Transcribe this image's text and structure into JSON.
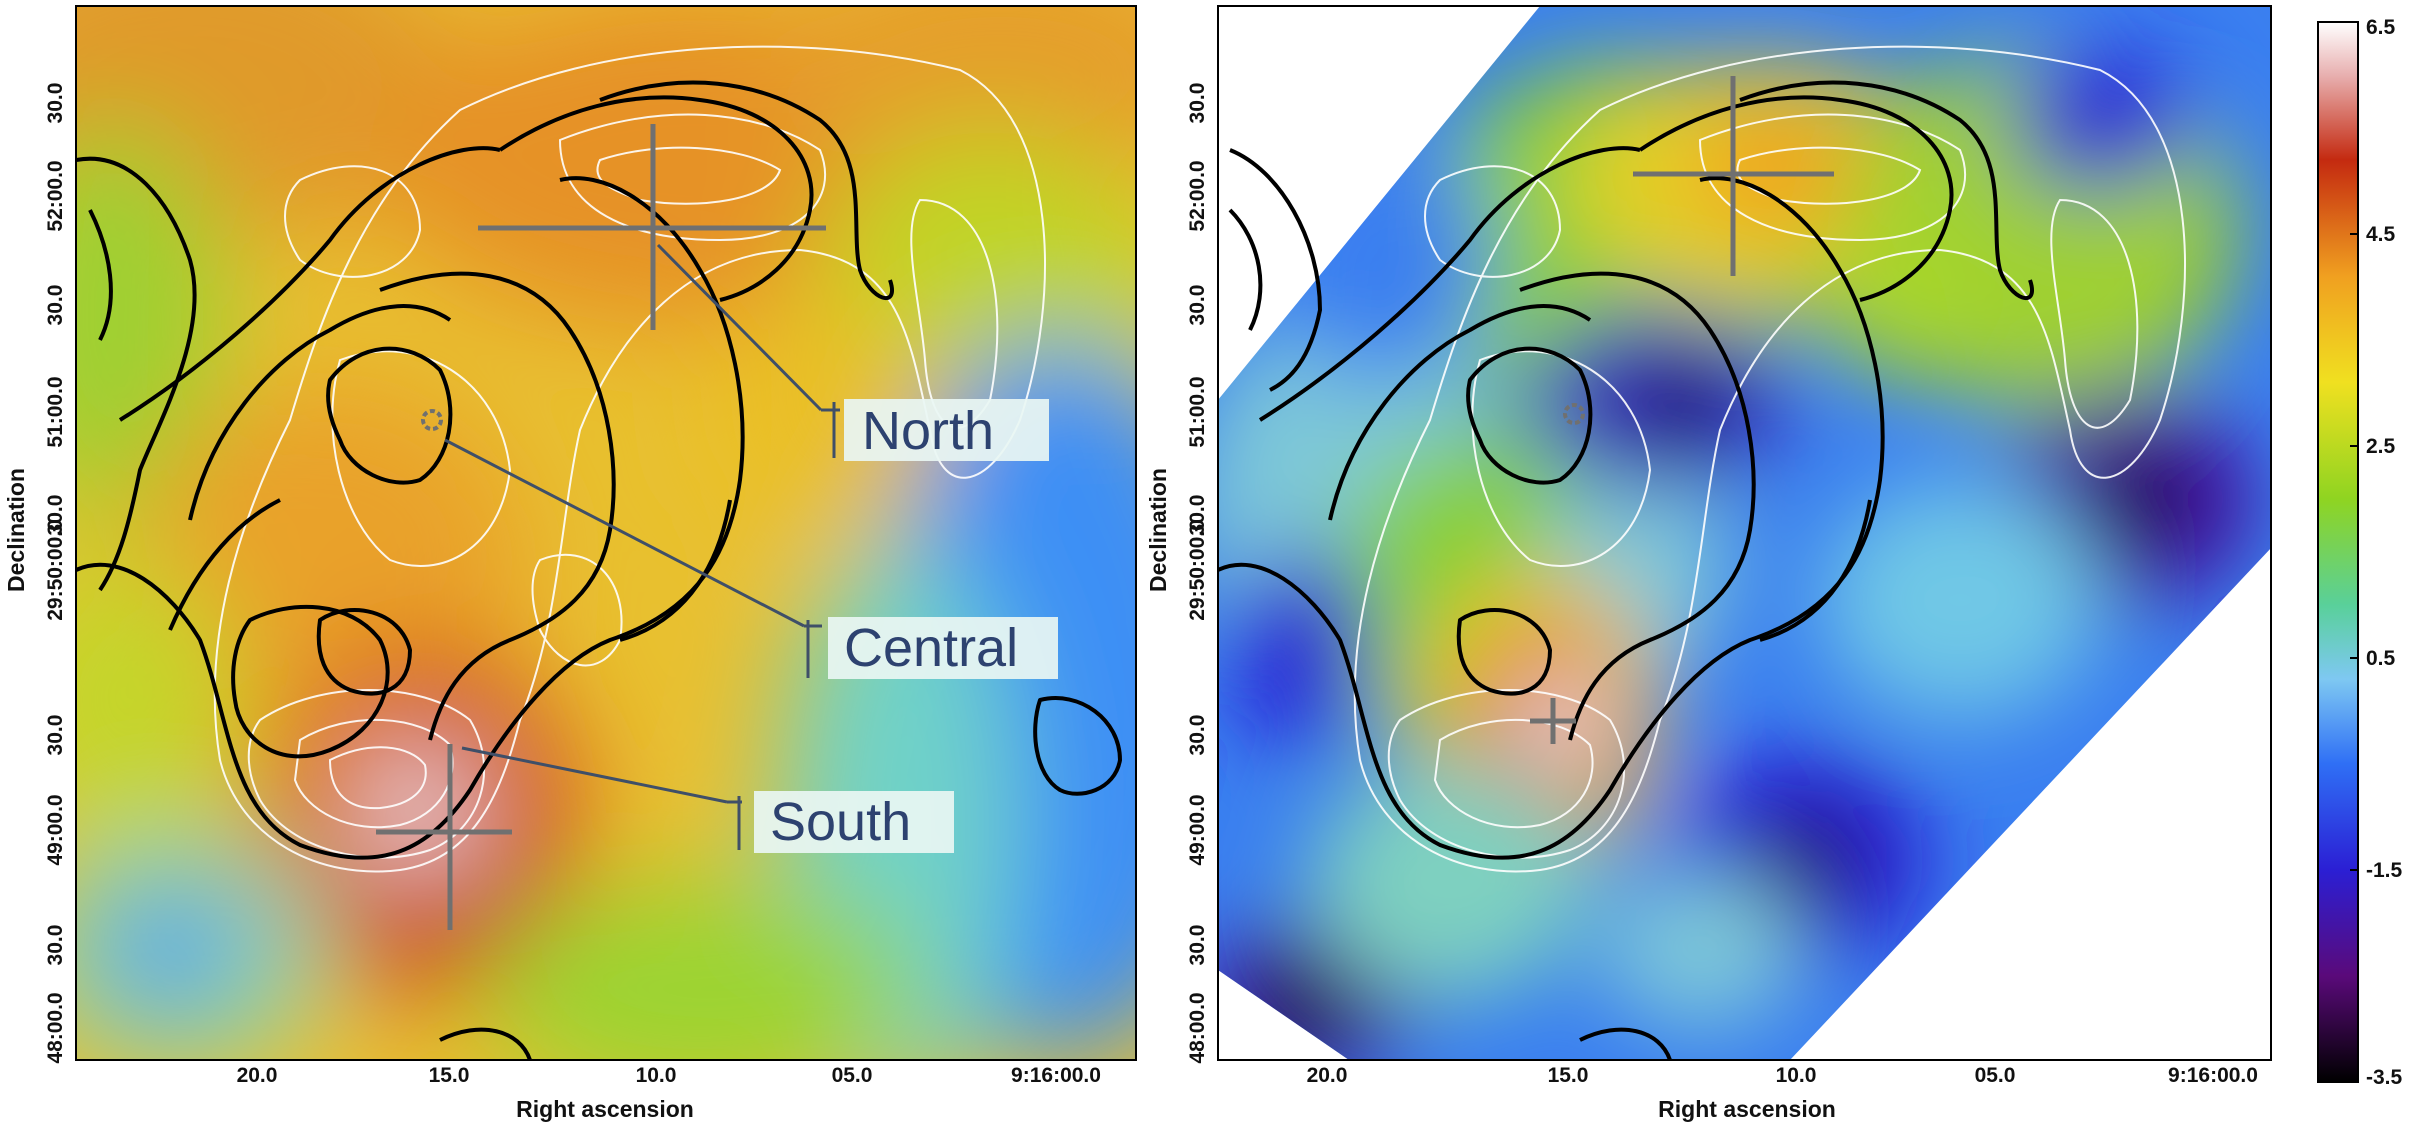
{
  "panels": [
    {
      "id": "left",
      "x_ticks": [
        "20.0",
        "15.0",
        "10.0",
        "05.0",
        "9:16:00.0"
      ],
      "y_ticks": [
        "48:00.0",
        "30.0",
        "49:00.0",
        "30.0",
        "29:50:00.0",
        "30.0",
        "51:00.0",
        "30.0",
        "52:00.0",
        "30.0"
      ],
      "xlabel": "Right ascension",
      "ylabel": "Declination",
      "labels": [
        "North",
        "Central",
        "South"
      ]
    },
    {
      "id": "right",
      "x_ticks": [
        "20.0",
        "15.0",
        "10.0",
        "05.0",
        "9:16:00.0"
      ],
      "y_ticks": [
        "48:00.0",
        "30.0",
        "49:00.0",
        "30.0",
        "29:50:00.0",
        "30.0",
        "51:00.0",
        "30.0",
        "52:00.0",
        "30.0"
      ],
      "xlabel": "Right ascension",
      "ylabel": "Declination"
    }
  ],
  "colorbar": {
    "tick_labels": [
      "6.5",
      "4.5",
      "2.5",
      "0.5",
      "-1.5",
      "-3.5"
    ],
    "tick_values": [
      6.5,
      4.5,
      2.5,
      0.5,
      -1.5,
      -3.5
    ],
    "range": [
      -3.5,
      6.5
    ],
    "colors": [
      "#000000",
      "#5a0a7a",
      "#2b1fd4",
      "#2f6ff5",
      "#7ec8f2",
      "#59d09a",
      "#8fd421",
      "#f0e020",
      "#f0a020",
      "#c42a10",
      "#ffffff"
    ]
  },
  "colors": {
    "contour_black": "#000000",
    "contour_white": "#ffffff",
    "marker_gray": "#707070",
    "label_text": "#2d4270",
    "label_box": "#e9f6f3",
    "leader_line": "#3f4f68"
  }
}
